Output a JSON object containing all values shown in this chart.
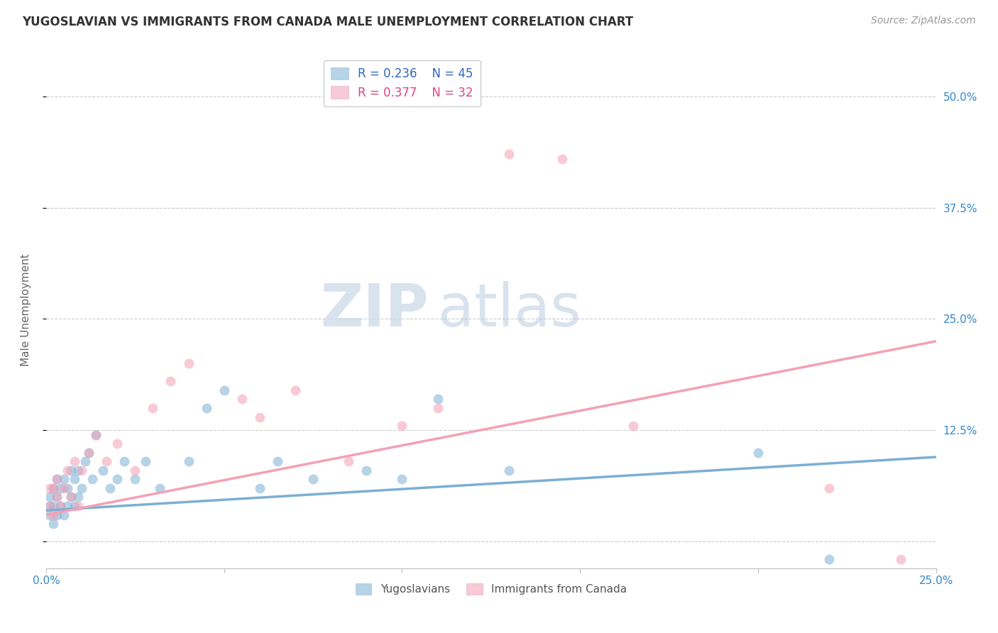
{
  "title": "YUGOSLAVIAN VS IMMIGRANTS FROM CANADA MALE UNEMPLOYMENT CORRELATION CHART",
  "source": "Source: ZipAtlas.com",
  "ylabel": "Male Unemployment",
  "legend_label1": "Yugoslavians",
  "legend_label2": "Immigrants from Canada",
  "r1": 0.236,
  "n1": 45,
  "r2": 0.377,
  "n2": 32,
  "color_blue": "#7BAFD4",
  "color_pink": "#F4A0B5",
  "color_blue_text": "#3366BB",
  "color_pink_text": "#DD4488",
  "color_axis_labels": "#3388CC",
  "xlim": [
    0.0,
    0.25
  ],
  "ylim": [
    -0.03,
    0.55
  ],
  "yticks": [
    0.0,
    0.125,
    0.25,
    0.375,
    0.5
  ],
  "ytick_labels": [
    "",
    "12.5%",
    "25.0%",
    "37.5%",
    "50.0%"
  ],
  "xticks": [
    0.0,
    0.05,
    0.1,
    0.15,
    0.2,
    0.25
  ],
  "xtick_labels": [
    "0.0%",
    "",
    "",
    "",
    "",
    "25.0%"
  ],
  "grid_color": "#CCCCCC",
  "blue_scatter_x": [
    0.001,
    0.001,
    0.001,
    0.002,
    0.002,
    0.002,
    0.003,
    0.003,
    0.003,
    0.004,
    0.004,
    0.005,
    0.005,
    0.006,
    0.006,
    0.007,
    0.007,
    0.008,
    0.008,
    0.009,
    0.009,
    0.01,
    0.011,
    0.012,
    0.013,
    0.014,
    0.016,
    0.018,
    0.02,
    0.022,
    0.025,
    0.028,
    0.032,
    0.04,
    0.045,
    0.05,
    0.06,
    0.065,
    0.075,
    0.09,
    0.1,
    0.11,
    0.13,
    0.2,
    0.22
  ],
  "blue_scatter_y": [
    0.03,
    0.04,
    0.05,
    0.02,
    0.04,
    0.06,
    0.03,
    0.05,
    0.07,
    0.04,
    0.06,
    0.03,
    0.07,
    0.04,
    0.06,
    0.05,
    0.08,
    0.04,
    0.07,
    0.05,
    0.08,
    0.06,
    0.09,
    0.1,
    0.07,
    0.12,
    0.08,
    0.06,
    0.07,
    0.09,
    0.07,
    0.09,
    0.06,
    0.09,
    0.15,
    0.17,
    0.06,
    0.09,
    0.07,
    0.08,
    0.07,
    0.16,
    0.08,
    0.1,
    -0.02
  ],
  "pink_scatter_x": [
    0.001,
    0.001,
    0.002,
    0.002,
    0.003,
    0.003,
    0.004,
    0.005,
    0.006,
    0.007,
    0.008,
    0.009,
    0.01,
    0.012,
    0.014,
    0.017,
    0.02,
    0.025,
    0.03,
    0.035,
    0.04,
    0.055,
    0.06,
    0.07,
    0.085,
    0.1,
    0.11,
    0.13,
    0.145,
    0.165,
    0.22,
    0.24
  ],
  "pink_scatter_y": [
    0.04,
    0.06,
    0.03,
    0.06,
    0.05,
    0.07,
    0.04,
    0.06,
    0.08,
    0.05,
    0.09,
    0.04,
    0.08,
    0.1,
    0.12,
    0.09,
    0.11,
    0.08,
    0.15,
    0.18,
    0.2,
    0.16,
    0.14,
    0.17,
    0.09,
    0.13,
    0.15,
    0.435,
    0.43,
    0.13,
    0.06,
    -0.02
  ],
  "blue_line_x": [
    0.0,
    0.25
  ],
  "blue_line_y": [
    0.035,
    0.095
  ],
  "pink_line_x": [
    0.0,
    0.25
  ],
  "pink_line_y": [
    0.03,
    0.225
  ]
}
